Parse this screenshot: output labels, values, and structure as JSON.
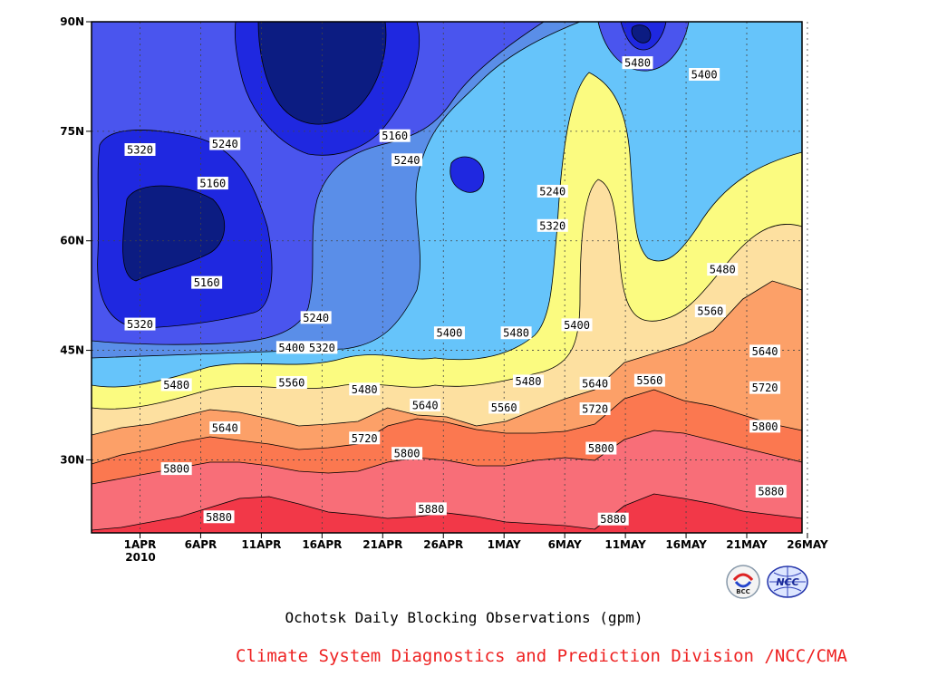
{
  "chart_data": {
    "type": "contour",
    "title": "",
    "xlabel": "",
    "ylabel": "",
    "x_ticks": [
      "1APR",
      "6APR",
      "11APR",
      "16APR",
      "21APR",
      "26APR",
      "1MAY",
      "6MAY",
      "11MAY",
      "16MAY",
      "21MAY",
      "26MAY"
    ],
    "x_year_label": "2010",
    "y_ticks": [
      "30N",
      "45N",
      "60N",
      "75N",
      "90N"
    ],
    "y_tick_values": [
      30,
      45,
      60,
      75,
      90
    ],
    "ylim": [
      20,
      90
    ],
    "contour_levels": [
      5160,
      5240,
      5320,
      5400,
      5480,
      5560,
      5640,
      5720,
      5800,
      5880
    ],
    "level_colors": {
      "below_5160": "#0c1c82",
      "5160_5240": "#1f28e0",
      "5240_5320": "#4a55ee",
      "5320_5400": "#5a8ee8",
      "5400_5480": "#66c4fa",
      "5480_5560": "#fbfb80",
      "5560_5640": "#fde0a0",
      "5640_5720": "#fca068",
      "5720_5800": "#fb7850",
      "5800_5880": "#f86e78",
      "above_5880": "#f23848"
    },
    "contour_labels": [
      {
        "text": "5320",
        "day": 0,
        "lat": 72.5
      },
      {
        "text": "5240",
        "day": 7,
        "lat": 73.3
      },
      {
        "text": "5160",
        "day": 6,
        "lat": 67.9
      },
      {
        "text": "5160",
        "day": 5.5,
        "lat": 54.3
      },
      {
        "text": "5320",
        "day": 0,
        "lat": 48.6
      },
      {
        "text": "5240",
        "day": 14.5,
        "lat": 49.5
      },
      {
        "text": "5400",
        "day": 12.5,
        "lat": 45.4
      },
      {
        "text": "5320",
        "day": 15,
        "lat": 45.4
      },
      {
        "text": "5160",
        "day": 21,
        "lat": 74.4
      },
      {
        "text": "5240",
        "day": 22,
        "lat": 71.1
      },
      {
        "text": "5240",
        "day": 34,
        "lat": 66.8
      },
      {
        "text": "5320",
        "day": 34,
        "lat": 62.1
      },
      {
        "text": "5400",
        "day": 25.5,
        "lat": 47.4
      },
      {
        "text": "5480",
        "day": 31,
        "lat": 47.4
      },
      {
        "text": "5400",
        "day": 36,
        "lat": 48.5
      },
      {
        "text": "5480",
        "day": 41,
        "lat": 84.4
      },
      {
        "text": "5400",
        "day": 46.5,
        "lat": 82.8
      },
      {
        "text": "5480",
        "day": 48,
        "lat": 56.1
      },
      {
        "text": "5560",
        "day": 47,
        "lat": 50.4
      },
      {
        "text": "5640",
        "day": 51.5,
        "lat": 44.9
      },
      {
        "text": "5480",
        "day": 3,
        "lat": 40.3
      },
      {
        "text": "5560",
        "day": 12.5,
        "lat": 40.6
      },
      {
        "text": "5480",
        "day": 18.5,
        "lat": 39.7
      },
      {
        "text": "5480",
        "day": 32,
        "lat": 40.8
      },
      {
        "text": "5560",
        "day": 42,
        "lat": 40.9
      },
      {
        "text": "5640",
        "day": 37.5,
        "lat": 40.5
      },
      {
        "text": "5560",
        "day": 30,
        "lat": 37.2
      },
      {
        "text": "5640",
        "day": 23.5,
        "lat": 37.5
      },
      {
        "text": "5720",
        "day": 37.5,
        "lat": 37.0
      },
      {
        "text": "5720",
        "day": 51.5,
        "lat": 39.9
      },
      {
        "text": "5640",
        "day": 7,
        "lat": 34.4
      },
      {
        "text": "5720",
        "day": 18.5,
        "lat": 33.0
      },
      {
        "text": "5800",
        "day": 22,
        "lat": 30.9
      },
      {
        "text": "5800",
        "day": 38,
        "lat": 31.6
      },
      {
        "text": "5800",
        "day": 51.5,
        "lat": 34.6
      },
      {
        "text": "5800",
        "day": 3,
        "lat": 28.8
      },
      {
        "text": "5880",
        "day": 6.5,
        "lat": 22.2
      },
      {
        "text": "5880",
        "day": 24,
        "lat": 23.3
      },
      {
        "text": "5880",
        "day": 39,
        "lat": 21.9
      },
      {
        "text": "5880",
        "day": 52,
        "lat": 25.7
      }
    ]
  },
  "caption": "Ochotsk Daily Blocking Observations (gpm)",
  "credit": "Climate System Diagnostics and Prediction Division /NCC/CMA",
  "logos": {
    "left": {
      "icon": "bcc-logo",
      "text": "BCC"
    },
    "right": {
      "icon": "ncc-logo",
      "text": "NCC"
    }
  }
}
